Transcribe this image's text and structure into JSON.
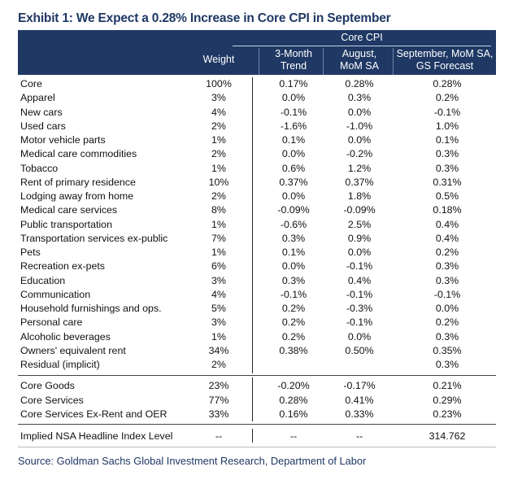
{
  "title": "Exhibit 1: We Expect a 0.28% Increase in Core CPI in September",
  "header": {
    "group": "Core CPI",
    "col_weight": "Weight",
    "col_trend_1": "3-Month",
    "col_trend_2": "Trend",
    "col_aug_1": "August,",
    "col_aug_2": "MoM SA",
    "col_sep_1": "September, MoM SA,",
    "col_sep_2": "GS Forecast"
  },
  "rows": [
    {
      "label": "Core",
      "weight": "100%",
      "trend": "0.17%",
      "aug": "0.28%",
      "sep": "0.28%"
    },
    {
      "label": "Apparel",
      "weight": "3%",
      "trend": "0.0%",
      "aug": "0.3%",
      "sep": "0.2%"
    },
    {
      "label": "New cars",
      "weight": "4%",
      "trend": "-0.1%",
      "aug": "0.0%",
      "sep": "-0.1%"
    },
    {
      "label": "Used cars",
      "weight": "2%",
      "trend": "-1.6%",
      "aug": "-1.0%",
      "sep": "1.0%"
    },
    {
      "label": "Motor vehicle parts",
      "weight": "1%",
      "trend": "0.1%",
      "aug": "0.0%",
      "sep": "0.1%"
    },
    {
      "label": "Medical care commodities",
      "weight": "2%",
      "trend": "0.0%",
      "aug": "-0.2%",
      "sep": "0.3%"
    },
    {
      "label": "Tobacco",
      "weight": "1%",
      "trend": "0.6%",
      "aug": "1.2%",
      "sep": "0.3%"
    },
    {
      "label": "Rent of primary residence",
      "weight": "10%",
      "trend": "0.37%",
      "aug": "0.37%",
      "sep": "0.31%"
    },
    {
      "label": "Lodging away from home",
      "weight": "2%",
      "trend": "0.0%",
      "aug": "1.8%",
      "sep": "0.5%"
    },
    {
      "label": "Medical care services",
      "weight": "8%",
      "trend": "-0.09%",
      "aug": "-0.09%",
      "sep": "0.18%"
    },
    {
      "label": "Public transportation",
      "weight": "1%",
      "trend": "-0.6%",
      "aug": "2.5%",
      "sep": "0.4%"
    },
    {
      "label": "Transportation services ex-public",
      "weight": "7%",
      "trend": "0.3%",
      "aug": "0.9%",
      "sep": "0.4%"
    },
    {
      "label": "Pets",
      "weight": "1%",
      "trend": "0.1%",
      "aug": "0.0%",
      "sep": "0.2%"
    },
    {
      "label": "Recreation ex-pets",
      "weight": "6%",
      "trend": "0.0%",
      "aug": "-0.1%",
      "sep": "0.3%"
    },
    {
      "label": "Education",
      "weight": "3%",
      "trend": "0.3%",
      "aug": "0.4%",
      "sep": "0.3%"
    },
    {
      "label": "Communication",
      "weight": "4%",
      "trend": "-0.1%",
      "aug": "-0.1%",
      "sep": "-0.1%"
    },
    {
      "label": "Household furnishings and ops.",
      "weight": "5%",
      "trend": "0.2%",
      "aug": "-0.3%",
      "sep": "0.0%"
    },
    {
      "label": "Personal care",
      "weight": "3%",
      "trend": "0.2%",
      "aug": "-0.1%",
      "sep": "0.2%"
    },
    {
      "label": "Alcoholic beverages",
      "weight": "1%",
      "trend": "0.2%",
      "aug": "0.0%",
      "sep": "0.3%"
    },
    {
      "label": "Owners' equivalent rent",
      "weight": "34%",
      "trend": "0.38%",
      "aug": "0.50%",
      "sep": "0.35%"
    },
    {
      "label": "Residual (implicit)",
      "weight": "2%",
      "trend": "",
      "aug": "",
      "sep": "0.3%"
    }
  ],
  "summary_rows": [
    {
      "label": "Core Goods",
      "weight": "23%",
      "trend": "-0.20%",
      "aug": "-0.17%",
      "sep": "0.21%"
    },
    {
      "label": "Core Services",
      "weight": "77%",
      "trend": "0.28%",
      "aug": "0.41%",
      "sep": "0.29%"
    },
    {
      "label": "Core Services Ex-Rent and OER",
      "weight": "33%",
      "trend": "0.16%",
      "aug": "0.33%",
      "sep": "0.23%"
    }
  ],
  "footer_row": {
    "label": "Implied NSA Headline Index Level",
    "weight": "--",
    "trend": "--",
    "aug": "--",
    "sep": "314.762"
  },
  "source": "Source: Goldman Sachs Global Investment Research, Department of Labor"
}
